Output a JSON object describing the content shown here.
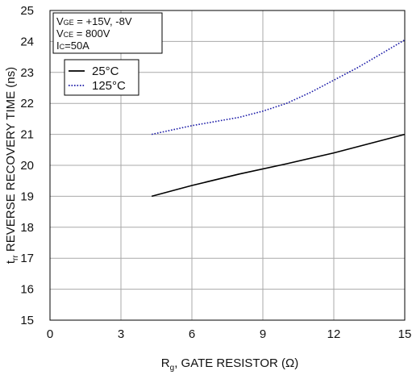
{
  "chart_data": {
    "type": "line",
    "title": "",
    "xlabel": {
      "main": "R",
      "sub": "g",
      "rest": ", GATE RESISTOR (Ω)"
    },
    "ylabel": {
      "main": "t",
      "sub": "rr",
      "rest": " REVERSE RECOVERY TIME (ns)"
    },
    "xlim": [
      0,
      15
    ],
    "ylim": [
      15,
      25
    ],
    "xticks": [
      0,
      3,
      6,
      9,
      12,
      15
    ],
    "yticks": [
      15,
      16,
      17,
      18,
      19,
      20,
      21,
      22,
      23,
      24,
      25
    ],
    "grid": true,
    "conditions": [
      {
        "label": "V",
        "sub": "GE",
        "value": " = +15V, -8V"
      },
      {
        "label": "V",
        "sub": "CE",
        "value": " = 800V"
      },
      {
        "label": "I",
        "sub": "C",
        "value": "=50A"
      }
    ],
    "legend_position": "top-left",
    "series": [
      {
        "name": "25°C",
        "style": "solid",
        "color": "#000000",
        "x": [
          4.3,
          6,
          8,
          10,
          12,
          15
        ],
        "y": [
          19.0,
          19.35,
          19.72,
          20.05,
          20.4,
          21.0
        ]
      },
      {
        "name": "125°C",
        "style": "dotted",
        "color": "#1c1ca8",
        "x": [
          4.3,
          6,
          8,
          9,
          10,
          11,
          12,
          13,
          14,
          15
        ],
        "y": [
          21.0,
          21.28,
          21.55,
          21.75,
          22.0,
          22.35,
          22.75,
          23.15,
          23.6,
          24.05
        ]
      }
    ]
  }
}
